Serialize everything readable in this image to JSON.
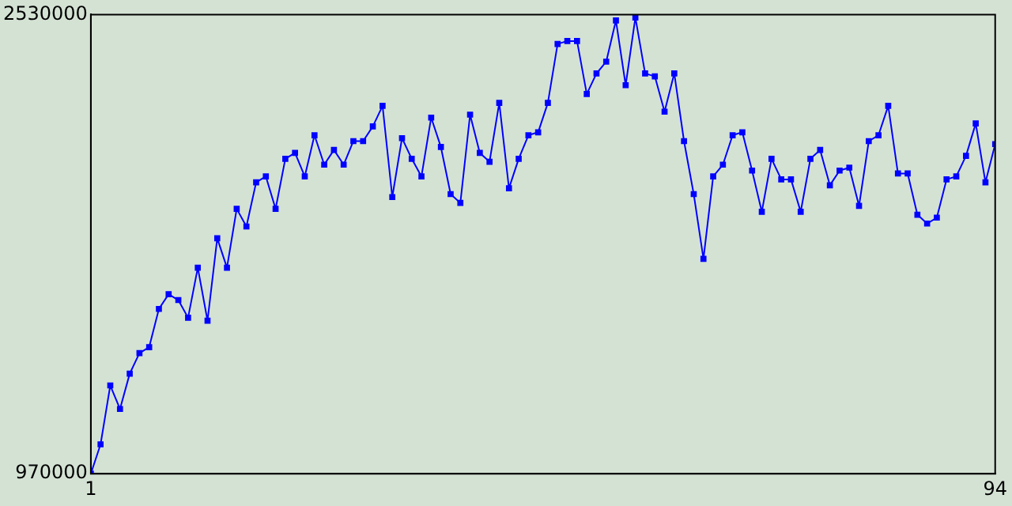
{
  "chart_data": {
    "type": "line",
    "marker": "square",
    "x": [
      1,
      2,
      3,
      4,
      5,
      6,
      7,
      8,
      9,
      10,
      11,
      12,
      13,
      14,
      15,
      16,
      17,
      18,
      19,
      20,
      21,
      22,
      23,
      24,
      25,
      26,
      27,
      28,
      29,
      30,
      31,
      32,
      33,
      34,
      35,
      36,
      37,
      38,
      39,
      40,
      41,
      42,
      43,
      44,
      45,
      46,
      47,
      48,
      49,
      50,
      51,
      52,
      53,
      54,
      55,
      56,
      57,
      58,
      59,
      60,
      61,
      62,
      63,
      64,
      65,
      66,
      67,
      68,
      69,
      70,
      71,
      72,
      73,
      74,
      75,
      76,
      77,
      78,
      79,
      80,
      81,
      82,
      83,
      84,
      85,
      86,
      87,
      88,
      89,
      90,
      91,
      92,
      93,
      94
    ],
    "series": [
      {
        "color": "#0000ff",
        "values": [
          970000,
          1070000,
          1270000,
          1190000,
          1310000,
          1380000,
          1400000,
          1530000,
          1580000,
          1560000,
          1500000,
          1670000,
          1490000,
          1770000,
          1670000,
          1870000,
          1810000,
          1960000,
          1980000,
          1870000,
          2040000,
          2060000,
          1980000,
          2120000,
          2020000,
          2070000,
          2020000,
          2100000,
          2100000,
          2150000,
          2220000,
          1910000,
          2110000,
          2040000,
          1980000,
          2180000,
          2080000,
          1920000,
          1890000,
          2190000,
          2060000,
          2030000,
          2230000,
          1940000,
          2040000,
          2120000,
          2130000,
          2230000,
          2430000,
          2440000,
          2440000,
          2260000,
          2330000,
          2370000,
          2510000,
          2290000,
          2520000,
          2330000,
          2320000,
          2200000,
          2330000,
          2100000,
          1920000,
          1700000,
          1980000,
          2020000,
          2120000,
          2130000,
          2000000,
          1860000,
          2040000,
          1970000,
          1970000,
          1860000,
          2040000,
          2070000,
          1950000,
          2000000,
          2010000,
          1880000,
          2100000,
          2120000,
          2220000,
          1990000,
          1990000,
          1850000,
          1820000,
          1840000,
          1970000,
          1980000,
          2050000,
          2160000,
          1960000,
          2090000
        ]
      }
    ],
    "xlim": [
      1,
      94
    ],
    "xticks": [
      1,
      94
    ],
    "ylim": [
      970000,
      2530000
    ],
    "yticks": [
      970000,
      2530000
    ]
  }
}
